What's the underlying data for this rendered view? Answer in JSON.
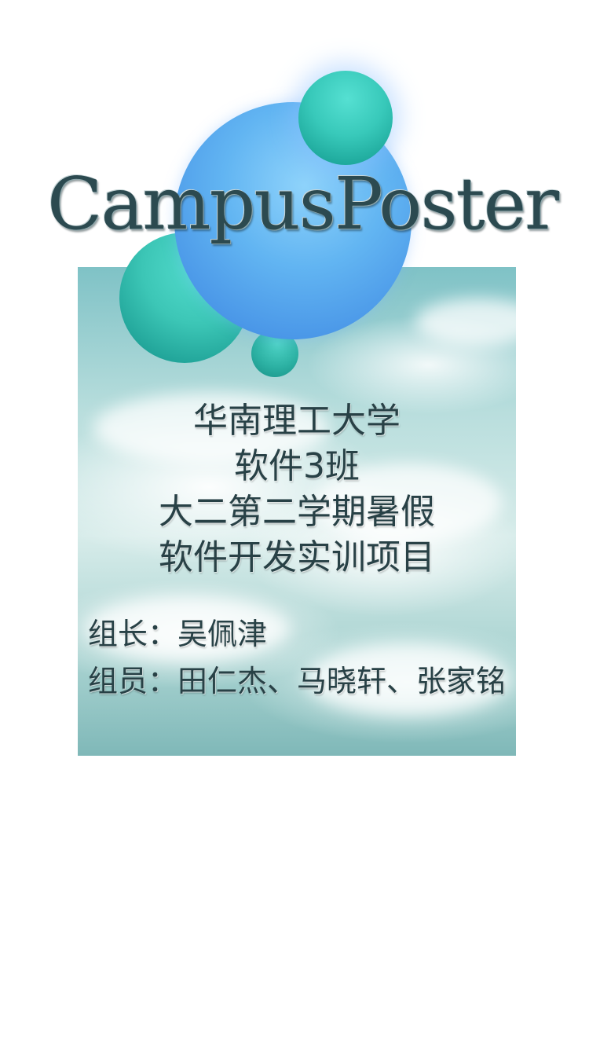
{
  "app": {
    "logo_text": "CampusPoster"
  },
  "poster": {
    "lines": [
      "华南理工大学",
      "软件3班",
      "大二第二学期暑假",
      "软件开发实训项目"
    ],
    "leader": "组长：吴佩津",
    "members": "组员：田仁杰、马晓轩、张家铭"
  },
  "colors": {
    "background": "#ffffff",
    "text": "#284146",
    "bubble_blue": "#62b5f2",
    "bubble_teal": "#38c9ba"
  }
}
